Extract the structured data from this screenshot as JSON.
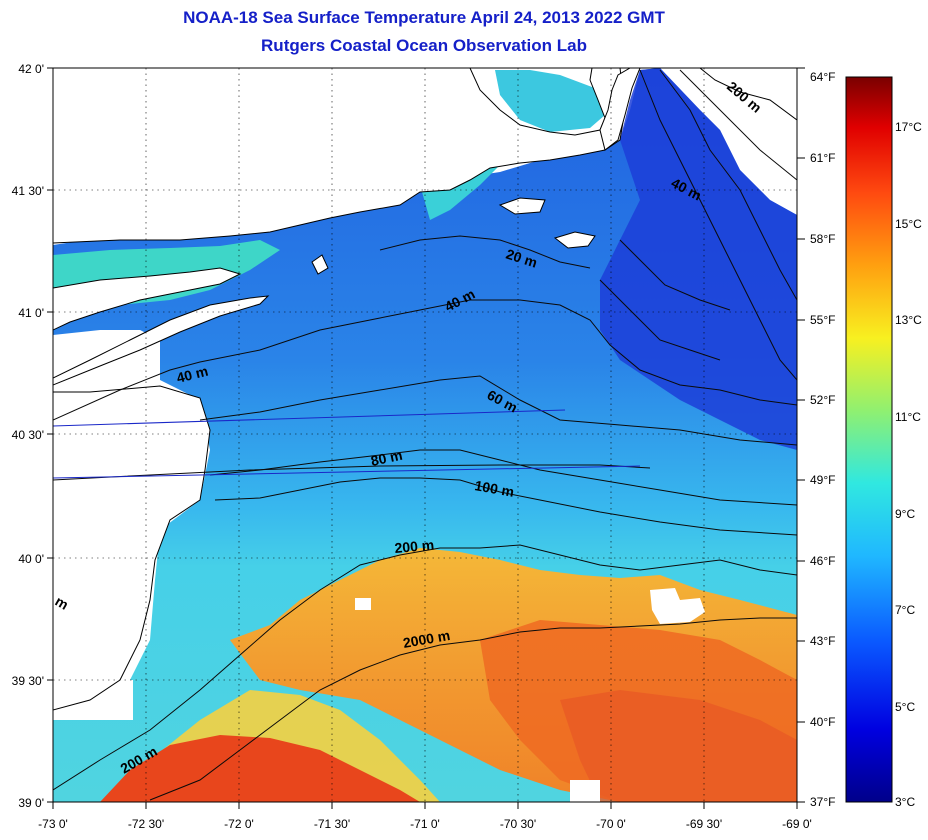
{
  "title_line1": "NOAA-18 Sea Surface Temperature April 24, 2013 2022 GMT",
  "title_line2": "Rutgers Coastal Ocean Observation Lab",
  "lat_labels": [
    "42 0'",
    "41 30'",
    "41 0'",
    "40 30'",
    "40 0'",
    "39 30'",
    "39 0'"
  ],
  "lon_labels": [
    "-73 0'",
    "-72 30'",
    "-72 0'",
    "-71 30'",
    "-71 0'",
    "-70 30'",
    "-70 0'",
    "-69 30'",
    "-69 0'"
  ],
  "f_labels": [
    "64°F",
    "61°F",
    "58°F",
    "55°F",
    "52°F",
    "49°F",
    "46°F",
    "43°F",
    "40°F",
    "37°F"
  ],
  "c_labels": [
    "17°C",
    "15°C",
    "13°C",
    "11°C",
    "9°C",
    "7°C",
    "5°C",
    "3°C"
  ],
  "isobath_labels": {
    "m20": "20 m",
    "m40a": "40 m",
    "m40b": "40 m",
    "m40c": "40 m",
    "m60": "60 m",
    "m80": "80 m",
    "m100": "100 m",
    "m200a": "200 m",
    "m200b": "200 m",
    "m200c": "200 m",
    "m2000": "2000 m",
    "mfrag": "m"
  },
  "colors": {
    "title": "#1520c8",
    "land": "#ffffff",
    "cold": "#1a3ad8",
    "shelf": "#2e8ce8",
    "warm": "#f0a030",
    "hot": "#e84820"
  }
}
